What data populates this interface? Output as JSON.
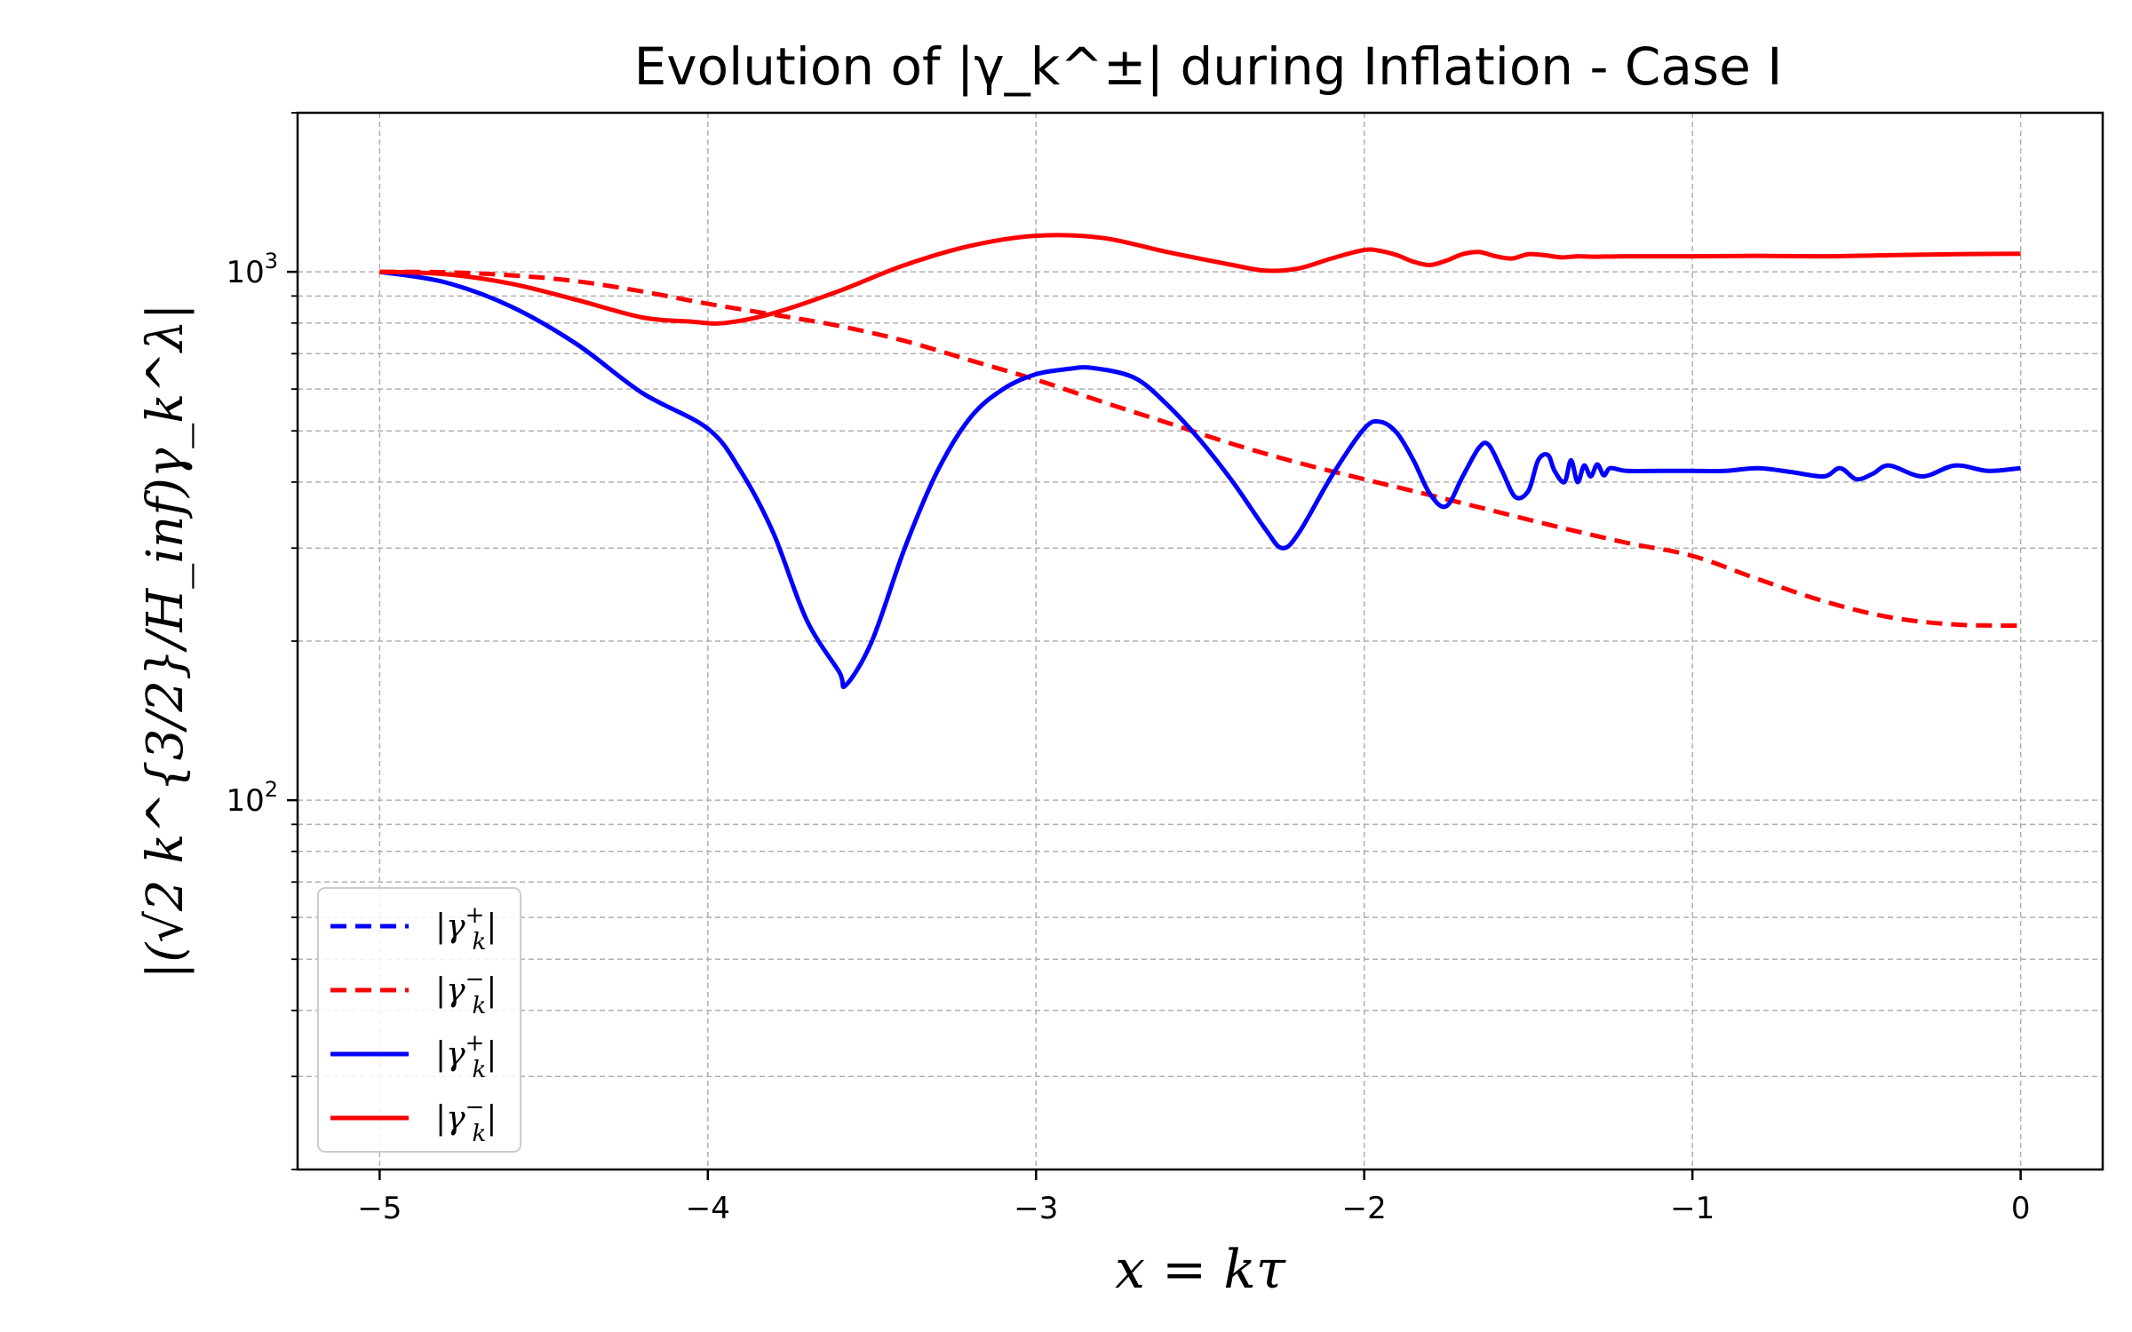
{
  "chart_data": {
    "type": "line",
    "title": "Evolution of |γ_k^±| during Inflation - Case I",
    "xlabel": "x = kτ",
    "ylabel": "|(√2 k^{3/2}/H_inf)γ_k^λ|",
    "yscale": "log",
    "xlim": [
      -5.25,
      0.25
    ],
    "ylim": [
      20,
      2000
    ],
    "grid": true,
    "legend_position": "lower-left",
    "x_ticks": [
      -5,
      -4,
      -3,
      -2,
      -1,
      0
    ],
    "x_tick_labels": [
      "−5",
      "−4",
      "−3",
      "−2",
      "−1",
      "0"
    ],
    "y_ticks": [
      100,
      1000
    ],
    "y_tick_labels": [
      {
        "base": "10",
        "exp": "2"
      },
      {
        "base": "10",
        "exp": "3"
      }
    ],
    "series": [
      {
        "name": "|γ_k^+|",
        "label_base": "|γ",
        "label_sub": "k",
        "label_sup": "+",
        "label_end": "|",
        "style": "dashed",
        "color": "#0000ff",
        "x": [],
        "y": []
      },
      {
        "name": "|γ_k^-|",
        "label_base": "|γ",
        "label_sub": "k",
        "label_sup": "−",
        "label_end": "|",
        "style": "dashed",
        "color": "#ff0000",
        "x": [
          -5.0,
          -4.8,
          -4.6,
          -4.4,
          -4.2,
          -4.0,
          -3.8,
          -3.6,
          -3.4,
          -3.2,
          -3.0,
          -2.8,
          -2.6,
          -2.4,
          -2.2,
          -2.0,
          -1.8,
          -1.6,
          -1.4,
          -1.2,
          -1.0,
          -0.8,
          -0.6,
          -0.4,
          -0.2,
          0.0
        ],
        "y": [
          1000,
          998,
          985,
          960,
          918,
          870,
          830,
          790,
          740,
          680,
          625,
          568,
          518,
          472,
          435,
          405,
          378,
          352,
          328,
          307,
          290,
          262,
          238,
          222,
          215,
          214
        ]
      },
      {
        "name": "|γ_k^+|",
        "label_base": "|γ",
        "label_sub": "k",
        "label_sup": "+",
        "label_end": "|",
        "style": "solid",
        "color": "#0000ff",
        "x": [
          -5.0,
          -4.8,
          -4.6,
          -4.4,
          -4.2,
          -4.0,
          -3.9,
          -3.8,
          -3.7,
          -3.6,
          -3.58,
          -3.5,
          -3.4,
          -3.3,
          -3.2,
          -3.1,
          -3.0,
          -2.9,
          -2.83,
          -2.7,
          -2.6,
          -2.5,
          -2.4,
          -2.3,
          -2.25,
          -2.2,
          -2.1,
          -2.0,
          -1.95,
          -1.9,
          -1.85,
          -1.8,
          -1.75,
          -1.7,
          -1.65,
          -1.62,
          -1.58,
          -1.54,
          -1.5,
          -1.47,
          -1.44,
          -1.42,
          -1.39,
          -1.37,
          -1.35,
          -1.33,
          -1.31,
          -1.29,
          -1.27,
          -1.25,
          -1.2,
          -1.1,
          -1.0,
          -0.9,
          -0.8,
          -0.7,
          -0.6,
          -0.55,
          -0.5,
          -0.45,
          -0.4,
          -0.3,
          -0.2,
          -0.1,
          0.0
        ],
        "y": [
          1000,
          955,
          860,
          730,
          590,
          505,
          420,
          320,
          220,
          175,
          165,
          200,
          300,
          420,
          530,
          600,
          640,
          655,
          658,
          630,
          560,
          480,
          400,
          325,
          300,
          320,
          410,
          505,
          520,
          495,
          440,
          380,
          360,
          410,
          465,
          470,
          420,
          375,
          385,
          440,
          450,
          420,
          400,
          440,
          400,
          430,
          410,
          432,
          412,
          425,
          420,
          420,
          420,
          420,
          425,
          418,
          410,
          425,
          405,
          415,
          430,
          410,
          430,
          420,
          425
        ]
      },
      {
        "name": "|γ_k^-|",
        "label_base": "|γ",
        "label_sub": "k",
        "label_sup": "−",
        "label_end": "|",
        "style": "solid",
        "color": "#ff0000",
        "x": [
          -5.0,
          -4.8,
          -4.6,
          -4.4,
          -4.2,
          -4.05,
          -3.95,
          -3.8,
          -3.6,
          -3.4,
          -3.2,
          -3.0,
          -2.8,
          -2.6,
          -2.4,
          -2.3,
          -2.2,
          -2.1,
          -2.0,
          -1.95,
          -1.9,
          -1.85,
          -1.8,
          -1.75,
          -1.7,
          -1.65,
          -1.6,
          -1.55,
          -1.5,
          -1.45,
          -1.4,
          -1.35,
          -1.3,
          -1.2,
          -1.0,
          -0.8,
          -0.6,
          -0.4,
          -0.2,
          0.0
        ],
        "y": [
          1000,
          990,
          950,
          885,
          820,
          805,
          800,
          835,
          920,
          1030,
          1120,
          1170,
          1160,
          1090,
          1030,
          1005,
          1015,
          1060,
          1100,
          1095,
          1075,
          1045,
          1030,
          1050,
          1080,
          1090,
          1070,
          1060,
          1080,
          1075,
          1065,
          1070,
          1068,
          1070,
          1070,
          1072,
          1070,
          1075,
          1080,
          1082
        ]
      }
    ]
  }
}
